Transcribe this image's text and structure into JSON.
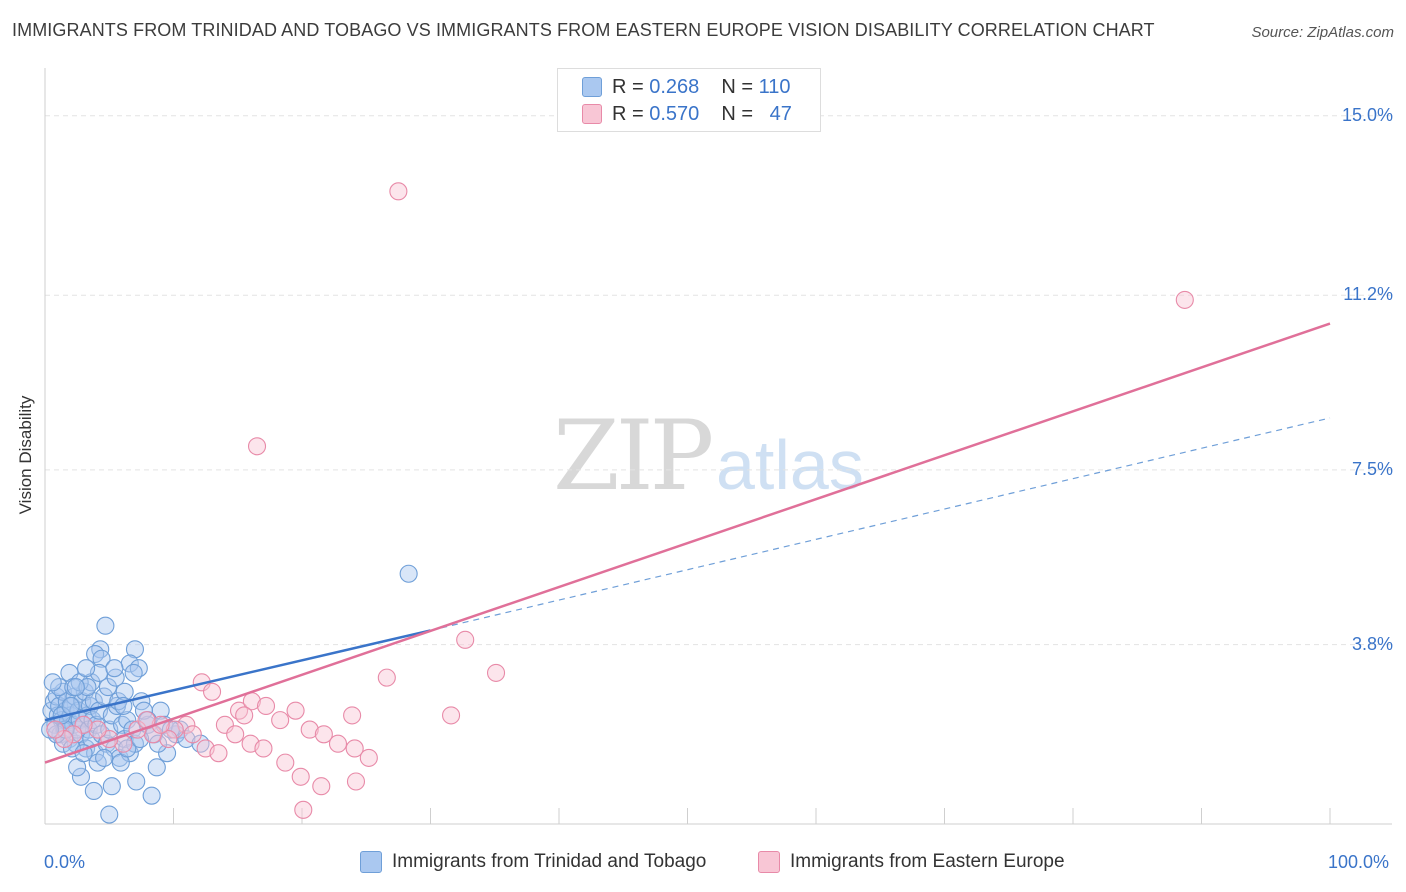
{
  "header": {
    "title": "IMMIGRANTS FROM TRINIDAD AND TOBAGO VS IMMIGRANTS FROM EASTERN EUROPE VISION DISABILITY CORRELATION CHART",
    "source": "Source: ZipAtlas.com"
  },
  "watermark": {
    "zip": "ZIP",
    "atlas": "atlas"
  },
  "legend": {
    "rows": [
      {
        "r_label": "R =",
        "r_value": "0.268",
        "n_label": "N =",
        "n_value": "110",
        "color": "#aac8f0",
        "border": "#6f9fd8"
      },
      {
        "r_label": "R =",
        "r_value": "0.570",
        "n_label": "N =",
        "n_value": "47",
        "color": "#f8c6d5",
        "border": "#e88aa8"
      }
    ]
  },
  "bottom_legend": {
    "items": [
      {
        "label": "Immigrants from Trinidad and Tobago",
        "color": "#aac8f0",
        "border": "#6f9fd8"
      },
      {
        "label": "Immigrants from Eastern Europe",
        "color": "#f8c6d5",
        "border": "#e88aa8"
      }
    ]
  },
  "chart_data": {
    "type": "scatter",
    "title": "IMMIGRANTS FROM TRINIDAD AND TOBAGO VS IMMIGRANTS FROM EASTERN EUROPE VISION DISABILITY CORRELATION CHART",
    "xlabel": "",
    "ylabel": "Vision Disability",
    "xlim": [
      0,
      100
    ],
    "ylim": [
      0,
      15.8
    ],
    "x_tick_labels": [
      "0.0%",
      "100.0%"
    ],
    "y_ticks": [
      3.8,
      7.5,
      11.2,
      15.0
    ],
    "y_tick_labels": [
      "3.8%",
      "7.5%",
      "11.2%",
      "15.0%"
    ],
    "legend_position": "top-center",
    "series": [
      {
        "name": "Immigrants from Trinidad and Tobago",
        "color": "#6f9fd8",
        "fill": "#aac8f0",
        "R": 0.268,
        "N": 110,
        "trend": {
          "x0": 0,
          "y0": 2.2,
          "x1": 30,
          "y1": 4.1,
          "solid_color": "#3a74c9",
          "dashed_to": {
            "x": 100,
            "y": 8.6
          }
        },
        "points": [
          [
            0.5,
            2.4
          ],
          [
            0.7,
            2.6
          ],
          [
            0.8,
            2.1
          ],
          [
            0.9,
            2.7
          ],
          [
            1.0,
            2.3
          ],
          [
            1.1,
            2.5
          ],
          [
            1.2,
            1.9
          ],
          [
            1.3,
            2.2
          ],
          [
            1.4,
            2.8
          ],
          [
            1.5,
            2.0
          ],
          [
            1.6,
            2.4
          ],
          [
            1.7,
            2.6
          ],
          [
            1.8,
            2.2
          ],
          [
            1.9,
            1.8
          ],
          [
            2.0,
            2.3
          ],
          [
            2.1,
            2.5
          ],
          [
            2.2,
            2.1
          ],
          [
            2.3,
            2.7
          ],
          [
            2.4,
            1.7
          ],
          [
            2.5,
            2.0
          ],
          [
            2.6,
            2.4
          ],
          [
            2.7,
            2.2
          ],
          [
            2.8,
            1.9
          ],
          [
            2.9,
            2.6
          ],
          [
            3.0,
            2.1
          ],
          [
            3.1,
            2.8
          ],
          [
            3.2,
            1.6
          ],
          [
            3.3,
            2.3
          ],
          [
            3.4,
            2.0
          ],
          [
            3.5,
            2.5
          ],
          [
            3.6,
            1.8
          ],
          [
            3.7,
            2.2
          ],
          [
            3.8,
            2.6
          ],
          [
            3.9,
            1.5
          ],
          [
            4.0,
            2.1
          ],
          [
            4.2,
            2.4
          ],
          [
            4.4,
            1.9
          ],
          [
            4.6,
            2.7
          ],
          [
            4.8,
            1.7
          ],
          [
            5.0,
            2.0
          ],
          [
            5.2,
            2.3
          ],
          [
            5.4,
            1.6
          ],
          [
            5.6,
            2.5
          ],
          [
            5.8,
            1.4
          ],
          [
            6.0,
            2.1
          ],
          [
            6.2,
            1.8
          ],
          [
            6.4,
            2.2
          ],
          [
            6.6,
            1.5
          ],
          [
            6.8,
            2.0
          ],
          [
            7.0,
            1.7
          ],
          [
            7.5,
            2.6
          ],
          [
            8.0,
            2.1
          ],
          [
            8.5,
            1.9
          ],
          [
            9.0,
            2.4
          ],
          [
            4.3,
            3.7
          ],
          [
            3.9,
            3.6
          ],
          [
            7.0,
            3.7
          ],
          [
            6.6,
            3.4
          ],
          [
            7.3,
            3.3
          ],
          [
            4.9,
            2.9
          ],
          [
            3.6,
            3.0
          ],
          [
            5.5,
            3.1
          ],
          [
            6.9,
            3.2
          ],
          [
            4.1,
            1.3
          ],
          [
            2.8,
            1.0
          ],
          [
            5.2,
            0.8
          ],
          [
            2.5,
            1.2
          ],
          [
            7.1,
            0.9
          ],
          [
            3.8,
            0.7
          ],
          [
            5.0,
            0.2
          ],
          [
            8.3,
            0.6
          ],
          [
            8.7,
            1.2
          ],
          [
            9.5,
            1.5
          ],
          [
            10.2,
            1.9
          ],
          [
            1.4,
            1.7
          ],
          [
            1.1,
            2.9
          ],
          [
            0.6,
            3.0
          ],
          [
            1.9,
            3.2
          ],
          [
            2.2,
            2.9
          ],
          [
            2.7,
            3.0
          ],
          [
            3.3,
            2.9
          ],
          [
            4.4,
            3.5
          ],
          [
            5.7,
            2.6
          ],
          [
            6.2,
            2.8
          ],
          [
            7.7,
            2.4
          ],
          [
            8.0,
            2.2
          ],
          [
            9.3,
            2.1
          ],
          [
            10.5,
            2.0
          ],
          [
            11.0,
            1.8
          ],
          [
            12.1,
            1.7
          ],
          [
            0.9,
            1.9
          ],
          [
            1.6,
            2.0
          ],
          [
            2.1,
            1.6
          ],
          [
            3.0,
            1.5
          ],
          [
            4.6,
            1.4
          ],
          [
            5.9,
            1.3
          ],
          [
            6.4,
            1.6
          ],
          [
            7.4,
            1.8
          ],
          [
            8.8,
            1.7
          ],
          [
            9.8,
            2.0
          ],
          [
            4.2,
            3.2
          ],
          [
            5.4,
            3.3
          ],
          [
            6.1,
            2.5
          ],
          [
            2.4,
            2.9
          ],
          [
            3.2,
            3.3
          ],
          [
            1.3,
            2.3
          ],
          [
            2.0,
            2.5
          ],
          [
            4.7,
            4.2
          ],
          [
            28.3,
            5.3
          ],
          [
            0.4,
            2.0
          ]
        ]
      },
      {
        "name": "Immigrants from Eastern Europe",
        "color": "#e88aa8",
        "fill": "#f8c6d5",
        "R": 0.57,
        "N": 47,
        "trend": {
          "x0": 0,
          "y0": 1.3,
          "x1": 100,
          "y1": 10.6,
          "solid_color": "#e07099"
        },
        "points": [
          [
            27.5,
            13.4
          ],
          [
            88.7,
            11.1
          ],
          [
            16.5,
            8.0
          ],
          [
            32.7,
            3.9
          ],
          [
            35.1,
            3.2
          ],
          [
            26.6,
            3.1
          ],
          [
            31.6,
            2.3
          ],
          [
            12.2,
            3.0
          ],
          [
            13.0,
            2.8
          ],
          [
            14.0,
            2.1
          ],
          [
            15.1,
            2.4
          ],
          [
            16.1,
            2.6
          ],
          [
            17.2,
            2.5
          ],
          [
            18.3,
            2.2
          ],
          [
            19.5,
            2.4
          ],
          [
            20.6,
            2.0
          ],
          [
            21.7,
            1.9
          ],
          [
            22.8,
            1.7
          ],
          [
            24.1,
            1.6
          ],
          [
            25.2,
            1.4
          ],
          [
            19.9,
            1.0
          ],
          [
            21.5,
            0.8
          ],
          [
            24.2,
            0.9
          ],
          [
            20.1,
            0.3
          ],
          [
            12.5,
            1.6
          ],
          [
            13.5,
            1.5
          ],
          [
            11.0,
            2.1
          ],
          [
            10.1,
            2.0
          ],
          [
            9.6,
            1.8
          ],
          [
            8.4,
            1.9
          ],
          [
            7.2,
            2.0
          ],
          [
            6.1,
            1.7
          ],
          [
            5.0,
            1.8
          ],
          [
            4.1,
            2.0
          ],
          [
            3.0,
            2.1
          ],
          [
            2.2,
            1.9
          ],
          [
            1.5,
            1.8
          ],
          [
            0.8,
            2.0
          ],
          [
            14.8,
            1.9
          ],
          [
            16.0,
            1.7
          ],
          [
            17.0,
            1.6
          ],
          [
            18.7,
            1.3
          ],
          [
            23.9,
            2.3
          ],
          [
            9.0,
            2.1
          ],
          [
            11.5,
            1.9
          ],
          [
            15.5,
            2.3
          ],
          [
            7.9,
            2.2
          ]
        ]
      }
    ]
  }
}
